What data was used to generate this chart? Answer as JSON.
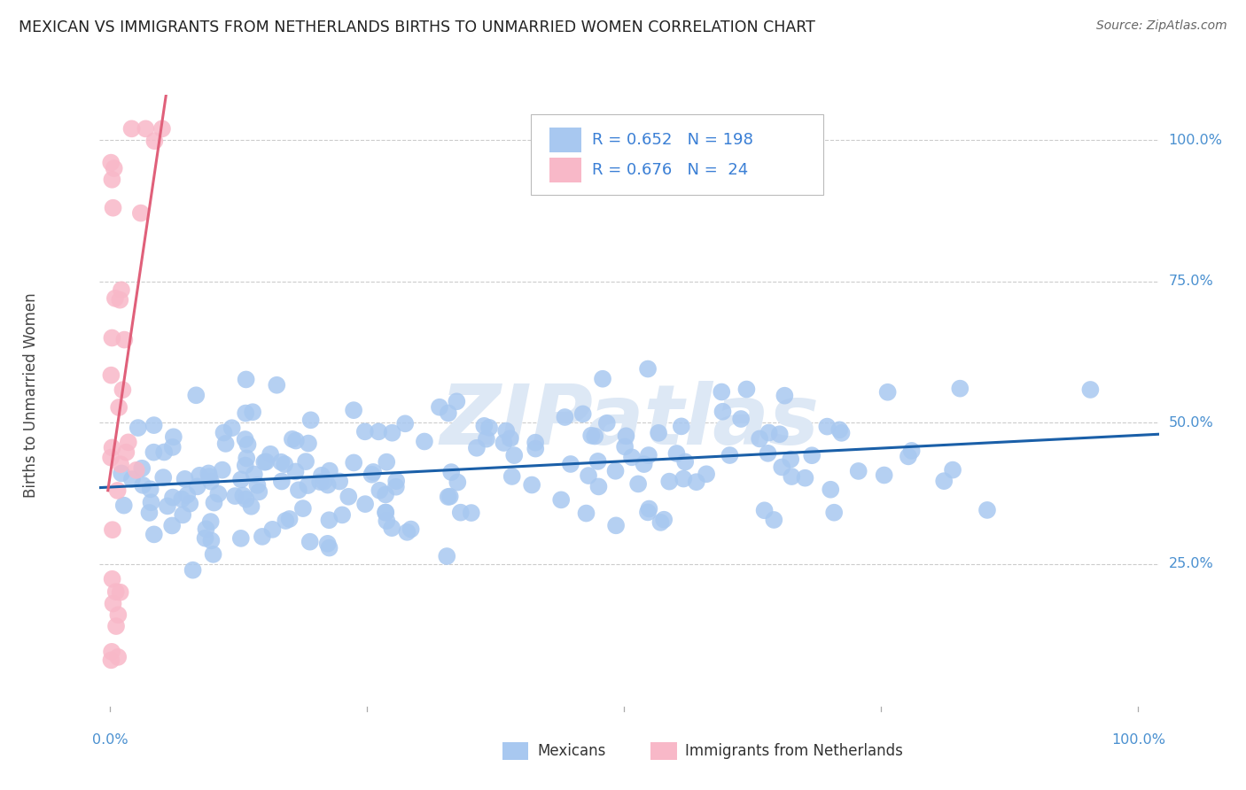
{
  "title": "MEXICAN VS IMMIGRANTS FROM NETHERLANDS BIRTHS TO UNMARRIED WOMEN CORRELATION CHART",
  "source": "Source: ZipAtlas.com",
  "ylabel": "Births to Unmarried Women",
  "ytick_labels": [
    "100.0%",
    "75.0%",
    "50.0%",
    "25.0%"
  ],
  "ytick_values": [
    1.0,
    0.75,
    0.5,
    0.25
  ],
  "xlim": [
    -0.01,
    1.02
  ],
  "ylim": [
    -0.01,
    1.08
  ],
  "r_blue": 0.652,
  "n_blue": 198,
  "r_pink": 0.676,
  "n_pink": 24,
  "blue_color": "#a8c8f0",
  "pink_color": "#f8b8c8",
  "blue_line_color": "#1a5fa8",
  "pink_line_color": "#e0607a",
  "blue_axis_color": "#4a90d0",
  "title_fontsize": 12.5,
  "watermark": "ZIPatlas",
  "watermark_color": "#dde8f5",
  "legend_text_color": "#3a7fd5",
  "legend_label_color": "#333333",
  "background_color": "#ffffff",
  "grid_color": "#cccccc",
  "seed": 99
}
